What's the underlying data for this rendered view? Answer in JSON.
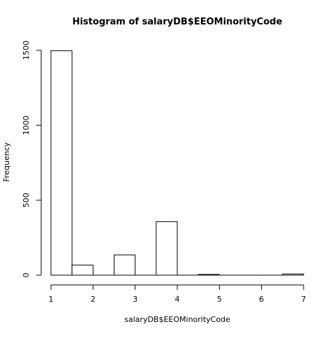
{
  "chart_data": {
    "type": "bar",
    "title": "Histogram of salaryDB$EEOMinorityCode",
    "xlabel": "salaryDB$EEOMinorityCode",
    "ylabel": "Frequency",
    "bins": [
      {
        "start": 1.0,
        "end": 1.5,
        "value": 1497
      },
      {
        "start": 1.5,
        "end": 2.0,
        "value": 67
      },
      {
        "start": 2.0,
        "end": 2.5,
        "value": 0
      },
      {
        "start": 2.5,
        "end": 3.0,
        "value": 135
      },
      {
        "start": 3.0,
        "end": 3.5,
        "value": 0
      },
      {
        "start": 3.5,
        "end": 4.0,
        "value": 357
      },
      {
        "start": 4.0,
        "end": 4.5,
        "value": 0
      },
      {
        "start": 4.5,
        "end": 5.0,
        "value": 5
      },
      {
        "start": 5.0,
        "end": 5.5,
        "value": 0
      },
      {
        "start": 5.5,
        "end": 6.0,
        "value": 0
      },
      {
        "start": 6.0,
        "end": 6.5,
        "value": 0
      },
      {
        "start": 6.5,
        "end": 7.0,
        "value": 8
      }
    ],
    "xlim": [
      1,
      7
    ],
    "ylim": [
      0,
      1500
    ],
    "x_ticks": [
      "1",
      "2",
      "3",
      "4",
      "5",
      "6",
      "7"
    ],
    "y_ticks": [
      "0",
      "500",
      "1000",
      "1500"
    ],
    "grid": false,
    "bar_fill": "#ffffff",
    "bar_stroke": "#000000"
  }
}
